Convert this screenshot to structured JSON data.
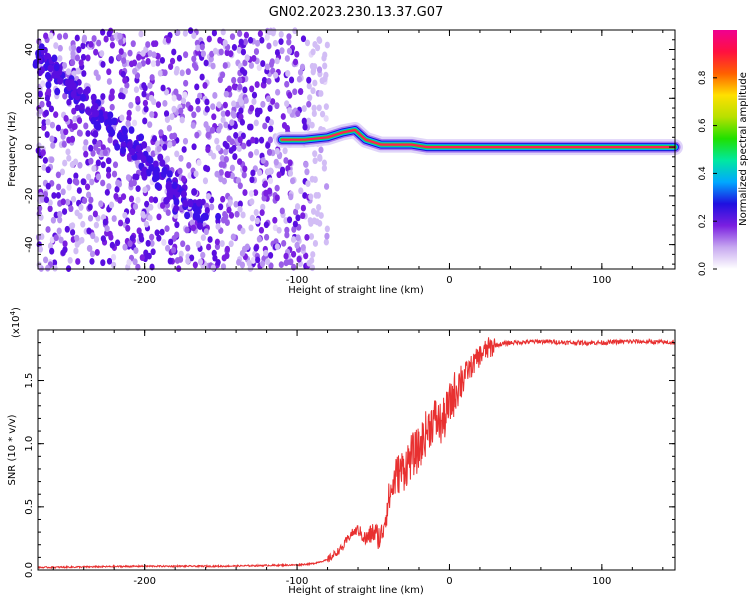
{
  "figure": {
    "title": "GN02.2023.230.13.37.G07"
  },
  "chart_data": [
    {
      "type": "heatmap",
      "xlabel": "Height of straight line (km)",
      "ylabel": "Frequency (Hz)",
      "xlim": [
        -270,
        148
      ],
      "ylim": [
        -50,
        48
      ],
      "xticks": [
        -200,
        -100,
        0,
        100
      ],
      "yticks": [
        -40,
        -20,
        0,
        20,
        40
      ],
      "xtick_labels": [
        "-200",
        "-100",
        "0",
        "100"
      ],
      "ytick_labels": [
        "-40",
        "-20",
        "0",
        "20",
        "40"
      ],
      "noise_region": [
        -270,
        -92
      ],
      "diagonal_trace": {
        "x": [
          -270,
          -160
        ],
        "y": [
          38,
          -30
        ]
      },
      "signal_trace": {
        "x": [
          -110,
          -95,
          -80,
          -70,
          -62,
          -55,
          -45,
          -35,
          -25,
          -15,
          0,
          50,
          100,
          148
        ],
        "y": [
          3,
          3,
          4,
          6,
          7,
          3,
          1,
          1,
          1,
          0,
          0,
          0,
          0,
          0
        ]
      },
      "colorbar": {
        "label": "Normalized spectral amplitude",
        "range": [
          0,
          1
        ],
        "ticks": [
          0.0,
          0.2,
          0.4,
          0.6,
          0.8
        ],
        "tick_labels": [
          "0.0",
          "0.2",
          "0.4",
          "0.6",
          "0.8"
        ],
        "colors": [
          "#ffffff",
          "#c7a8f0",
          "#7a1fe0",
          "#1f10e0",
          "#00a8ff",
          "#00e8a0",
          "#20e000",
          "#b8e000",
          "#ffe000",
          "#ff6000",
          "#ff1040",
          "#f00090"
        ]
      },
      "grid": false
    },
    {
      "type": "line",
      "xlabel": "Height of straight line (km)",
      "ylabel": "SNR (10 * v/v)",
      "scale_label": "(x10",
      "scale_exp": "4",
      "scale_close": ")",
      "xlim": [
        -270,
        148
      ],
      "ylim": [
        0,
        1.9
      ],
      "xticks": [
        -200,
        -100,
        0,
        100
      ],
      "yticks": [
        0.0,
        0.5,
        1.0,
        1.5
      ],
      "xtick_labels": [
        "-200",
        "-100",
        "0",
        "100"
      ],
      "ytick_labels": [
        "0.0",
        "0.5",
        "1.0",
        "1.5"
      ],
      "series": [
        {
          "color": "#e83030",
          "x": [
            -270,
            -200,
            -150,
            -100,
            -90,
            -80,
            -70,
            -65,
            -60,
            -55,
            -50,
            -45,
            -40,
            -35,
            -30,
            -25,
            -20,
            -15,
            -10,
            -5,
            0,
            5,
            10,
            15,
            20,
            25,
            30,
            40,
            60,
            80,
            100,
            120,
            148
          ],
          "y": [
            0.02,
            0.03,
            0.03,
            0.04,
            0.05,
            0.08,
            0.18,
            0.28,
            0.32,
            0.24,
            0.3,
            0.25,
            0.55,
            0.75,
            0.8,
            0.9,
            0.95,
            1.1,
            1.2,
            1.15,
            1.3,
            1.45,
            1.55,
            1.62,
            1.7,
            1.75,
            1.78,
            1.8,
            1.81,
            1.8,
            1.8,
            1.81,
            1.8
          ]
        }
      ],
      "grid": false
    }
  ]
}
